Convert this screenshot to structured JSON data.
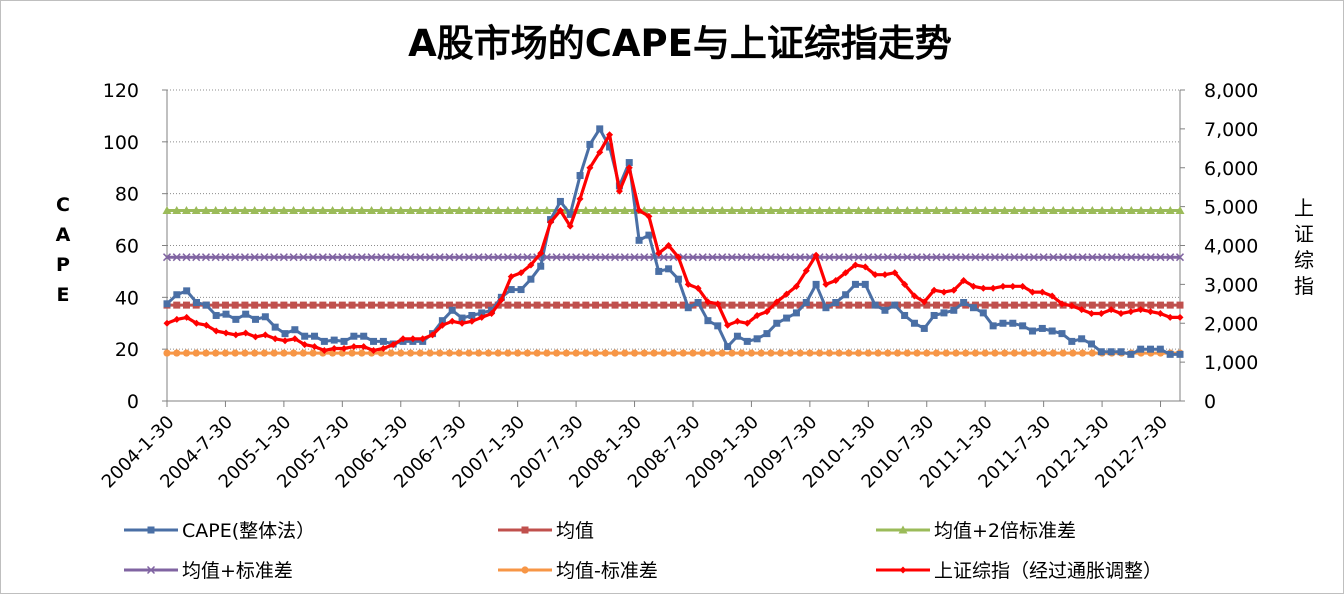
{
  "chart_data": {
    "type": "line",
    "title": "A股市场的CAPE与上证综指走势",
    "ylabel": "CAPE",
    "y2label": "上证综指",
    "ylim": [
      0,
      120
    ],
    "y2lim": [
      0,
      8000
    ],
    "yticks": [
      0,
      20,
      40,
      60,
      80,
      100,
      120
    ],
    "y2ticks": [
      "0",
      "1,000",
      "2,000",
      "3,000",
      "4,000",
      "5,000",
      "6,000",
      "7,000",
      "8,000"
    ],
    "x_start": "2004-1",
    "x_end": "2012-9",
    "xticks": [
      "2004-1-30",
      "2004-7-30",
      "2005-1-30",
      "2005-7-30",
      "2006-1-30",
      "2006-7-30",
      "2007-1-30",
      "2007-7-30",
      "2008-1-30",
      "2008-7-30",
      "2009-1-30",
      "2009-7-30",
      "2010-1-30",
      "2010-7-30",
      "2011-1-30",
      "2011-7-30",
      "2012-1-30",
      "2012-7-30"
    ],
    "grid": "horizontal-dotted",
    "legend_position": "bottom",
    "series": [
      {
        "name": "CAPE(整体法）",
        "axis": "left",
        "color": "#4a6fa5",
        "marker": "square",
        "values": [
          37.5,
          41,
          42.5,
          38,
          37,
          33,
          33.5,
          31.5,
          33.5,
          31.5,
          32.5,
          28.5,
          26,
          27.5,
          25,
          25,
          23,
          23.5,
          23,
          25,
          25,
          23,
          23,
          22,
          23,
          23,
          23,
          26,
          31,
          35,
          32,
          33,
          34,
          35,
          40,
          43,
          43,
          47,
          52,
          70,
          77,
          72,
          87,
          99,
          105,
          98,
          83,
          92,
          62,
          64,
          50,
          51,
          47,
          36,
          38,
          31,
          29,
          21,
          25,
          23,
          24,
          26,
          30,
          32,
          34,
          38,
          45,
          36,
          38,
          41,
          45,
          45,
          37,
          35,
          37,
          33,
          30,
          28,
          33,
          34,
          35,
          38,
          36,
          34,
          29,
          30,
          30,
          29,
          27,
          28,
          27,
          26,
          23,
          24,
          22,
          19,
          19,
          19,
          18,
          20,
          20,
          20,
          18,
          18
        ]
      },
      {
        "name": "均值",
        "axis": "left",
        "color": "#c0504d",
        "marker": "square",
        "constant": 37.0
      },
      {
        "name": "均值+2倍标准差",
        "axis": "left",
        "color": "#9bbb59",
        "marker": "triangle",
        "constant": 73.5
      },
      {
        "name": "均值+标准差",
        "axis": "left",
        "color": "#8064a2",
        "marker": "x",
        "constant": 55.5
      },
      {
        "name": "均值-标准差",
        "axis": "left",
        "color": "#f79646",
        "marker": "circle",
        "constant": 18.5
      },
      {
        "name": "上证综指（经过通胀调整）",
        "axis": "right",
        "color": "#ff0000",
        "marker": "diamond",
        "values": [
          2000,
          2100,
          2150,
          2000,
          1950,
          1800,
          1750,
          1700,
          1750,
          1650,
          1700,
          1600,
          1550,
          1600,
          1450,
          1400,
          1300,
          1350,
          1350,
          1400,
          1400,
          1300,
          1350,
          1450,
          1600,
          1600,
          1600,
          1700,
          1950,
          2050,
          2000,
          2050,
          2150,
          2250,
          2600,
          3200,
          3300,
          3500,
          3800,
          4600,
          4900,
          4500,
          5200,
          6000,
          6400,
          6850,
          5400,
          6000,
          4900,
          4750,
          3800,
          4000,
          3700,
          3000,
          2900,
          2550,
          2500,
          1950,
          2050,
          2000,
          2200,
          2300,
          2550,
          2750,
          2950,
          3350,
          3750,
          3000,
          3100,
          3300,
          3500,
          3450,
          3250,
          3250,
          3300,
          3000,
          2700,
          2550,
          2850,
          2800,
          2850,
          3100,
          2950,
          2900,
          2900,
          2950,
          2950,
          2950,
          2800,
          2800,
          2700,
          2500,
          2450,
          2350,
          2250,
          2250,
          2350,
          2250,
          2300,
          2350,
          2300,
          2250,
          2150,
          2150
        ]
      }
    ]
  }
}
